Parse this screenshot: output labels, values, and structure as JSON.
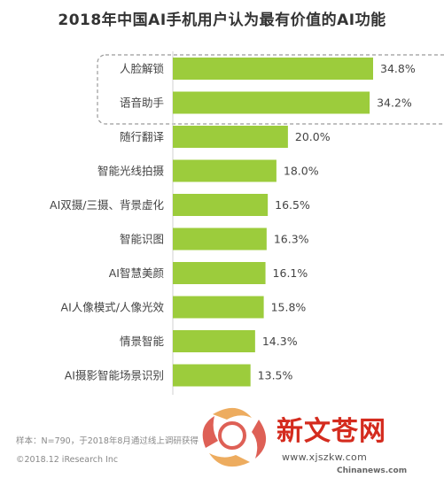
{
  "chart_data": {
    "type": "bar",
    "orientation": "horizontal",
    "title": "2018年中国AI手机用户认为最有价值的AI功能",
    "categories": [
      "人脸解锁",
      "语音助手",
      "随行翻译",
      "智能光线拍摄",
      "AI双摄/三摄、背景虚化",
      "智能识图",
      "AI智慧美颜",
      "AI人像模式/人像光效",
      "情景智能",
      "AI摄影智能场景识别"
    ],
    "values": [
      34.8,
      34.2,
      20.0,
      18.0,
      16.5,
      16.3,
      16.1,
      15.8,
      14.3,
      13.5
    ],
    "value_labels": [
      "34.8%",
      "34.2%",
      "20.0%",
      "18.0%",
      "16.5%",
      "16.3%",
      "16.1%",
      "15.8%",
      "14.3%",
      "13.5%"
    ],
    "highlighted_categories": [
      "人脸解锁",
      "语音助手"
    ],
    "bar_color": "#9ccc3c",
    "grid": false
  },
  "footer": {
    "note": "样本：N=790，于2018年8月通过线上调研获得",
    "copyright": "©2018.12 iResearch Inc"
  },
  "watermark": {
    "title": "新文苍网",
    "url": "www.xjszkw.com",
    "site": "Chinanews.com"
  }
}
